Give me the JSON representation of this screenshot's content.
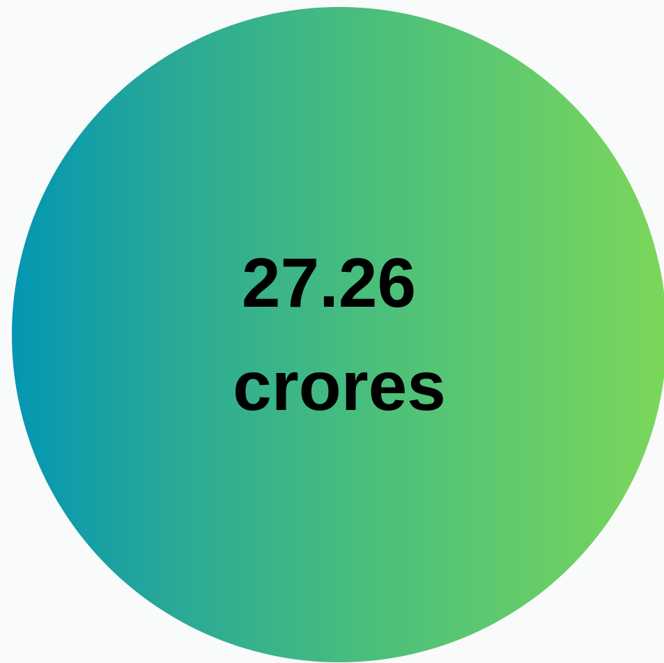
{
  "stat": {
    "value": "27.26",
    "unit": "crores"
  }
}
